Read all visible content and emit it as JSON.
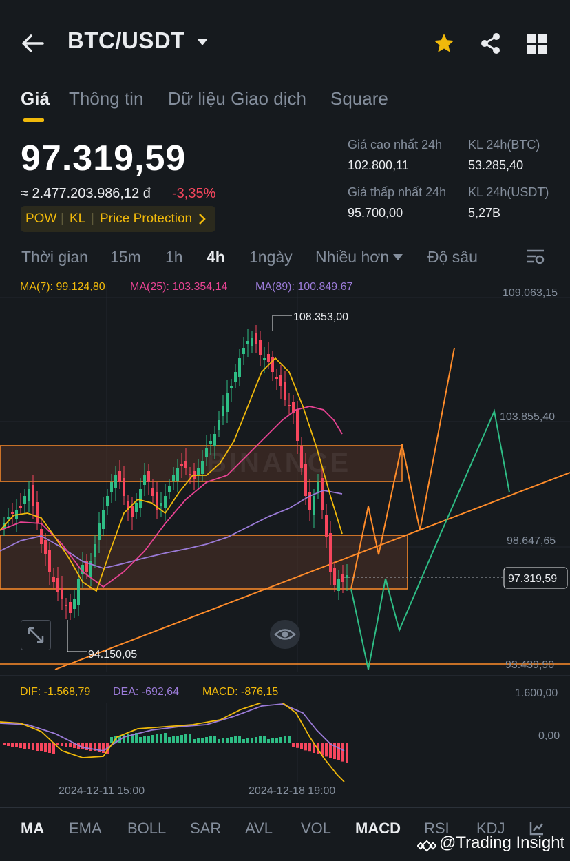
{
  "header": {
    "pair": "BTC/USDT"
  },
  "tabs": [
    {
      "label": "Giá"
    },
    {
      "label": "Thông tin"
    },
    {
      "label": "Dữ liệu Giao dịch"
    },
    {
      "label": "Square"
    }
  ],
  "ticker": {
    "price": "97.319,59",
    "price_vnd": "≈ 2.477.203.986,12 đ",
    "change": "-3,35%",
    "tags": [
      "POW",
      "KL",
      "Price Protection"
    ],
    "high_label": "Giá cao nhất 24h",
    "high_value": "102.800,11",
    "low_label": "Giá thấp nhất 24h",
    "low_value": "95.700,00",
    "vol_btc_label": "KL 24h(BTC)",
    "vol_btc_value": "53.285,40",
    "vol_usdt_label": "KL 24h(USDT)",
    "vol_usdt_value": "5,27B"
  },
  "intervals": [
    {
      "label": "Thời gian"
    },
    {
      "label": "15m"
    },
    {
      "label": "1h"
    },
    {
      "label": "4h"
    },
    {
      "label": "1ngày"
    },
    {
      "label": "Nhiều hơn"
    },
    {
      "label": "Độ sâu"
    }
  ],
  "ma_legend": {
    "ma7": "MA(7): 99.124,80",
    "ma25": "MA(25): 103.354,14",
    "ma89": "MA(89): 100.849,67"
  },
  "chart": {
    "watermark": "BINANCE",
    "price_axis": [
      "109.063,15",
      "103.855,40",
      "98.647,65",
      "93.439,90"
    ],
    "current_price": "97.319,59",
    "high_marker": "108.353,00",
    "low_marker": "94.150,05"
  },
  "macd": {
    "dif": "DIF: -1.568,79",
    "dea": "DEA: -692,64",
    "macd": "MACD: -876,15",
    "axis": [
      "1.600,00",
      "0,00"
    ]
  },
  "dates": [
    "2024-12-11 15:00",
    "2024-12-18 19:00"
  ],
  "indicators": [
    {
      "label": "MA"
    },
    {
      "label": "EMA"
    },
    {
      "label": "BOLL"
    },
    {
      "label": "SAR"
    },
    {
      "label": "AVL"
    },
    {
      "label": "VOL"
    },
    {
      "label": "MACD"
    },
    {
      "label": "RSI"
    },
    {
      "label": "KDJ"
    }
  ],
  "watermark_credit": "@Trading Insight",
  "colors": {
    "up": "#2ebd85",
    "down": "#f6465d",
    "accent": "#f0b90b",
    "bg": "#161a1e",
    "ma7": "#f0b90b",
    "ma25": "#e84393",
    "ma89": "#9b7bd8",
    "zone": "#ff8c2a"
  },
  "icons": [
    "back-arrow-icon",
    "caret-down-icon",
    "star-icon",
    "share-icon",
    "grid-icon",
    "chart-settings-icon",
    "expand-icon",
    "eye-icon",
    "indicator-settings-icon"
  ]
}
